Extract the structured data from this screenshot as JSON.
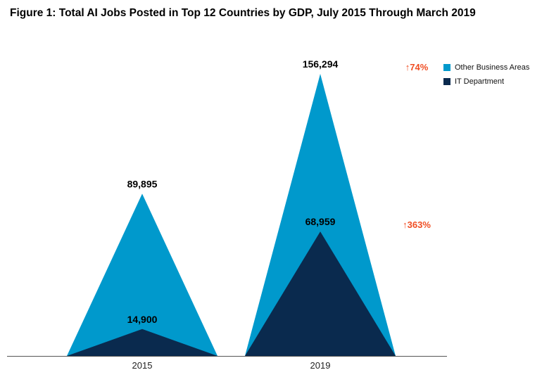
{
  "title": "Figure 1: Total AI Jobs Posted in Top 12 Countries by GDP, July 2015 Through March 2019",
  "colors": {
    "other": "#0099cc",
    "it": "#0a2a4e",
    "growth": "#f04e23",
    "label": "#000000"
  },
  "legend": [
    {
      "label": "Other Business Areas",
      "color": "#0099cc"
    },
    {
      "label": "IT Department",
      "color": "#0a2a4e"
    }
  ],
  "chart_data": {
    "type": "area",
    "categories": [
      "2015",
      "2019"
    ],
    "series": [
      {
        "name": "Other Business Areas",
        "values": [
          89895,
          156294
        ],
        "labels": [
          "89,895",
          "156,294"
        ]
      },
      {
        "name": "IT Department",
        "values": [
          14900,
          68959
        ],
        "labels": [
          "14,900",
          "68,959"
        ]
      }
    ],
    "growth": [
      {
        "series": "Other Business Areas",
        "label": "↑74%"
      },
      {
        "series": "IT Department",
        "label": "↑363%"
      }
    ],
    "ylim": [
      0,
      156294
    ],
    "grid": false,
    "legend_position": "top-right"
  }
}
